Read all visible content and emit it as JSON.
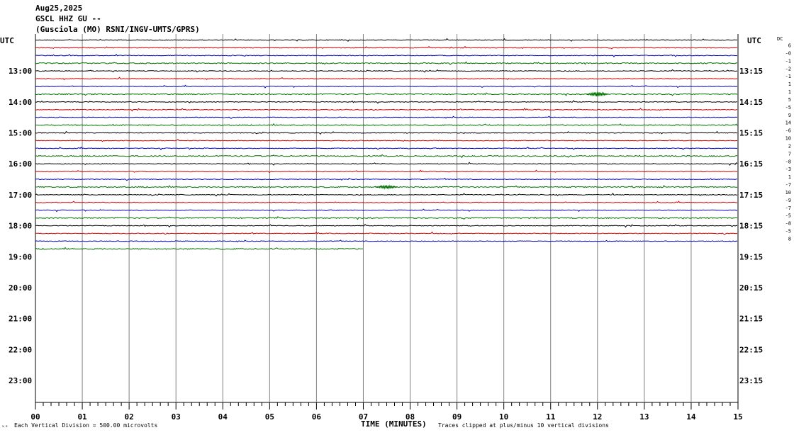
{
  "header": {
    "date": "Aug25,2025",
    "station": "GSCL HHZ GU --",
    "network": "(Gusciola (MO) RSNI/INGV-UMTS/GPRS)"
  },
  "left_utc_label": "UTC",
  "right_utc_label": "UTC",
  "dc_label": "DC",
  "chart_data": {
    "type": "line",
    "title": "Aug25,2025",
    "xlabel": "TIME (MINUTES)",
    "ylabel": "UTC",
    "xlim": [
      0,
      15
    ],
    "x_ticks": [
      "00",
      "01",
      "02",
      "03",
      "04",
      "05",
      "06",
      "07",
      "08",
      "09",
      "10",
      "11",
      "12",
      "13",
      "14",
      "15"
    ],
    "left_hour_labels": [
      "13:00",
      "14:00",
      "15:00",
      "16:00",
      "17:00",
      "18:00",
      "19:00",
      "20:00",
      "21:00",
      "22:00",
      "23:00"
    ],
    "right_hour_labels": [
      "13:15",
      "14:15",
      "15:15",
      "16:15",
      "17:15",
      "18:15",
      "19:15",
      "20:15",
      "21:15",
      "22:15",
      "23:15"
    ],
    "first_hour": 12,
    "rows_per_hour": 4,
    "row_colors": [
      "#000000",
      "#d00000",
      "#0000c0",
      "#007000"
    ],
    "trace_count": 28,
    "last_trace_end_minutes": 7.0,
    "dc_offsets": [
      "6",
      "-0",
      "-1",
      "-2",
      "-1",
      "1",
      "1",
      "5",
      "-5",
      "9",
      "14",
      "-6",
      "10",
      "2",
      "7",
      "-8",
      "-3",
      "1",
      "-7",
      "10",
      "-9",
      "-7",
      "-5",
      "-8",
      "-5",
      "8"
    ],
    "footer_left": "Each Vertical Division =  500.00 microvolts",
    "footer_right": "Traces clipped at plus/minus 10 vertical divisions"
  }
}
